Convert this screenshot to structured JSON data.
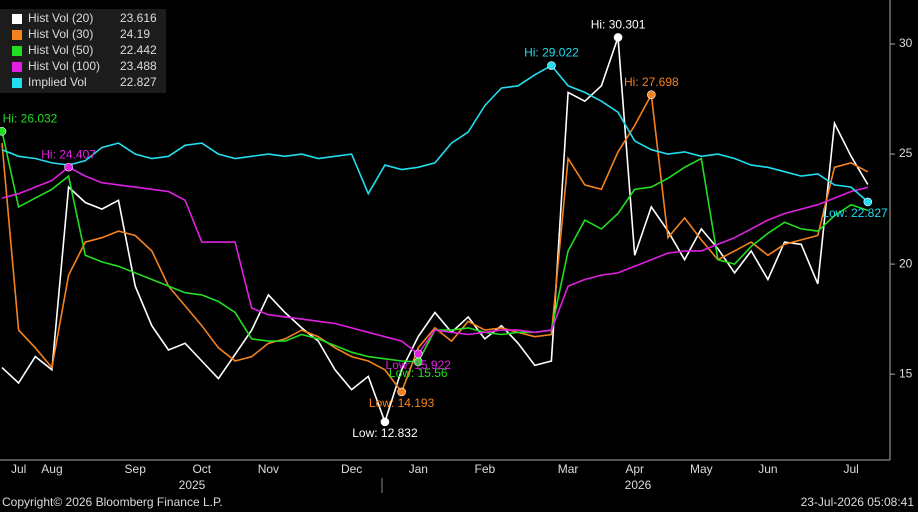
{
  "chart_data": {
    "type": "line",
    "categories": [
      null,
      "Jul",
      null,
      "Aug",
      null,
      null,
      null,
      null,
      "Sep",
      null,
      null,
      null,
      "Oct",
      null,
      null,
      null,
      "Nov",
      null,
      null,
      null,
      null,
      "Dec",
      null,
      null,
      null,
      "Jan",
      null,
      null,
      null,
      "Feb",
      null,
      null,
      null,
      null,
      "Mar",
      null,
      null,
      null,
      "Apr",
      null,
      null,
      null,
      "May",
      null,
      null,
      null,
      "Jun",
      null,
      null,
      null,
      null,
      "Jul",
      null
    ],
    "years": [
      "2025",
      "2026"
    ],
    "ylim": [
      11.1,
      32
    ],
    "yticks": [
      15,
      20,
      25,
      30
    ],
    "series": [
      {
        "name": "Hist Vol (20)",
        "color": "#ffffff",
        "values": [
          15.3,
          14.6,
          15.8,
          15.2,
          23.5,
          22.8,
          22.5,
          22.9,
          19.0,
          17.2,
          16.1,
          16.4,
          15.6,
          14.8,
          15.9,
          17.0,
          18.6,
          17.8,
          17.1,
          16.5,
          15.2,
          14.3,
          14.9,
          12.832,
          15.2,
          16.7,
          17.8,
          16.9,
          17.6,
          16.6,
          17.2,
          16.4,
          15.4,
          15.6,
          27.8,
          27.4,
          28.1,
          30.301,
          20.4,
          22.6,
          21.5,
          20.2,
          21.6,
          20.7,
          19.6,
          20.6,
          19.3,
          21.0,
          20.9,
          19.1,
          26.4,
          24.9,
          23.616
        ],
        "annotations": [
          {
            "label": "Hi: 30.301",
            "value": 30.301,
            "kind": "hi"
          },
          {
            "label": "Low: 12.832",
            "value": 12.832,
            "kind": "low"
          }
        ]
      },
      {
        "name": "Hist Vol (30)",
        "color": "#f5821f",
        "values": [
          25.5,
          17.0,
          16.2,
          15.3,
          19.5,
          21.0,
          21.2,
          21.5,
          21.3,
          20.6,
          19.0,
          18.1,
          17.2,
          16.2,
          15.6,
          15.8,
          16.4,
          16.6,
          17.0,
          16.7,
          16.2,
          15.8,
          15.6,
          15.2,
          14.193,
          16.2,
          17.1,
          16.5,
          17.4,
          17.0,
          17.1,
          16.9,
          16.7,
          16.8,
          24.8,
          23.6,
          23.4,
          25.1,
          26.3,
          27.698,
          21.2,
          22.1,
          21.1,
          20.2,
          20.6,
          21.0,
          20.4,
          20.9,
          21.1,
          21.3,
          24.4,
          24.6,
          24.19
        ],
        "annotations": [
          {
            "label": "Hi: 27.698",
            "value": 27.698,
            "kind": "hi"
          },
          {
            "label": "Low: 14.193",
            "value": 14.193,
            "kind": "low"
          }
        ]
      },
      {
        "name": "Hist Vol (50)",
        "color": "#22dd22",
        "values": [
          26.032,
          22.6,
          23.0,
          23.4,
          24.0,
          20.4,
          20.1,
          19.9,
          19.6,
          19.3,
          19.0,
          18.7,
          18.6,
          18.3,
          17.8,
          16.6,
          16.5,
          16.5,
          16.8,
          16.6,
          16.3,
          16.0,
          15.8,
          15.7,
          15.6,
          15.56,
          17.0,
          17.0,
          17.1,
          16.9,
          16.8,
          16.9,
          16.9,
          17.0,
          20.6,
          22.0,
          21.6,
          22.3,
          23.4,
          23.5,
          23.9,
          24.4,
          24.8,
          20.2,
          20.0,
          20.8,
          21.4,
          21.9,
          21.6,
          21.5,
          22.2,
          22.7,
          22.442
        ],
        "annotations": [
          {
            "label": "Hi: 26.032",
            "value": 26.032,
            "kind": "hi"
          },
          {
            "label": "Low: 15.56",
            "value": 15.56,
            "kind": "low"
          }
        ]
      },
      {
        "name": "Hist Vol (100)",
        "color": "#e020e0",
        "values": [
          23.0,
          23.2,
          23.5,
          23.8,
          24.407,
          24.0,
          23.7,
          23.6,
          23.5,
          23.4,
          23.3,
          22.9,
          21.0,
          21.0,
          21.0,
          18.0,
          17.7,
          17.6,
          17.5,
          17.4,
          17.3,
          17.1,
          16.9,
          16.7,
          16.5,
          15.922,
          17.0,
          16.9,
          16.8,
          16.9,
          17.0,
          17.0,
          16.9,
          17.0,
          19.0,
          19.3,
          19.5,
          19.6,
          19.9,
          20.2,
          20.5,
          20.6,
          20.6,
          20.9,
          21.2,
          21.6,
          22.0,
          22.3,
          22.5,
          22.7,
          23.0,
          23.3,
          23.488
        ],
        "annotations": [
          {
            "label": "Hi: 24.407",
            "value": 24.407,
            "kind": "hi"
          },
          {
            "label": "Low: 15.922",
            "value": 15.922,
            "kind": "low"
          }
        ]
      },
      {
        "name": "Implied Vol",
        "color": "#22ddee",
        "values": [
          25.2,
          24.9,
          24.8,
          24.6,
          24.5,
          24.7,
          25.3,
          25.5,
          25.0,
          24.8,
          24.9,
          25.4,
          25.5,
          25.0,
          24.8,
          24.9,
          25.0,
          24.9,
          25.0,
          24.8,
          24.9,
          25.0,
          23.2,
          24.5,
          24.3,
          24.4,
          24.6,
          25.5,
          26.0,
          27.2,
          28.0,
          28.1,
          28.6,
          29.022,
          28.1,
          27.8,
          27.4,
          26.9,
          25.6,
          25.2,
          25.0,
          25.1,
          24.9,
          25.0,
          24.8,
          24.5,
          24.4,
          24.2,
          24.0,
          24.1,
          23.6,
          23.5,
          22.827
        ],
        "annotations": [
          {
            "label": "Hi: 29.022",
            "value": 29.022,
            "kind": "hi"
          },
          {
            "label": "Low: 22.827",
            "value": 22.827,
            "kind": "low"
          }
        ]
      }
    ],
    "copyright": "Copyright© 2026 Bloomberg Finance L.P.",
    "timestamp": "23-Jul-2026 05:08:41"
  }
}
